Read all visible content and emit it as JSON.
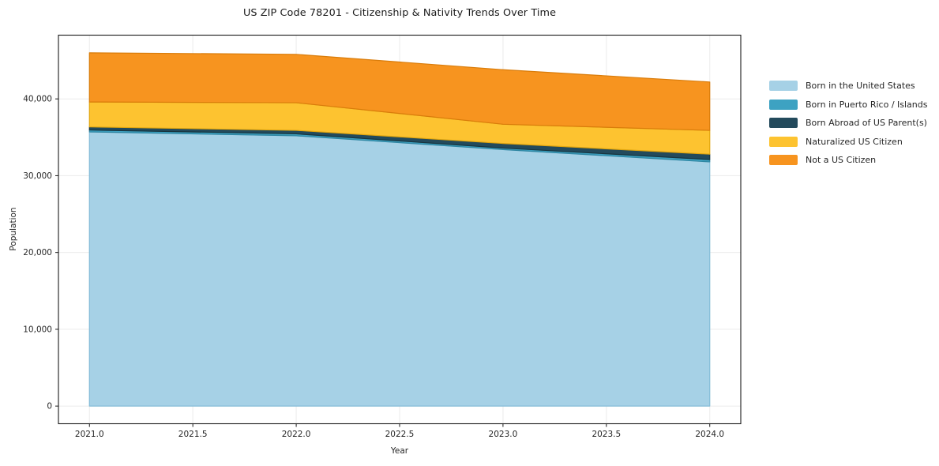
{
  "title": "US ZIP Code 78201 - Citizenship & Nativity Trends Over Time",
  "chart_data": {
    "type": "area",
    "stacked": true,
    "title": "US ZIP Code 78201 - Citizenship & Nativity Trends Over Time",
    "xlabel": "Year",
    "ylabel": "Population",
    "x": [
      2021,
      2022,
      2023,
      2024
    ],
    "series": [
      {
        "name": "Born in the United States",
        "color": "#a6d1e6",
        "edge": "#84bcd8",
        "values": [
          35700,
          35200,
          33400,
          31800
        ]
      },
      {
        "name": "Born in Puerto Rico / Islands",
        "color": "#3da2c2",
        "edge": "#2f86a2",
        "values": [
          250,
          250,
          200,
          300
        ]
      },
      {
        "name": "Born Abroad of US Parent(s)",
        "color": "#234a5c",
        "edge": "#18353f",
        "values": [
          400,
          450,
          600,
          700
        ]
      },
      {
        "name": "Naturalized US Citizen",
        "color": "#fdc330",
        "edge": "#e2a60e",
        "values": [
          3250,
          3600,
          2500,
          3100
        ]
      },
      {
        "name": "Not a US Citizen",
        "color": "#f7941f",
        "edge": "#d97c0a",
        "values": [
          6400,
          6300,
          7100,
          6300
        ]
      }
    ],
    "totals": [
      46000,
      45800,
      43800,
      42200
    ],
    "xlim": [
      2020.85,
      2024.15
    ],
    "ylim": [
      -2300,
      48300
    ],
    "xticks": {
      "values": [
        2021.0,
        2021.5,
        2022.0,
        2022.5,
        2023.0,
        2023.5,
        2024.0
      ],
      "labels": [
        "2021.0",
        "2021.5",
        "2022.0",
        "2022.5",
        "2023.0",
        "2023.5",
        "2024.0"
      ]
    },
    "yticks": {
      "values": [
        0,
        10000,
        20000,
        30000,
        40000
      ],
      "labels": [
        "0",
        "10,000",
        "20,000",
        "30,000",
        "40,000"
      ]
    },
    "grid": true,
    "grid_color": "#ebebeb",
    "spine_color": "#1a1a1a",
    "tick_text_color": "#262626",
    "legend_position": "right"
  }
}
